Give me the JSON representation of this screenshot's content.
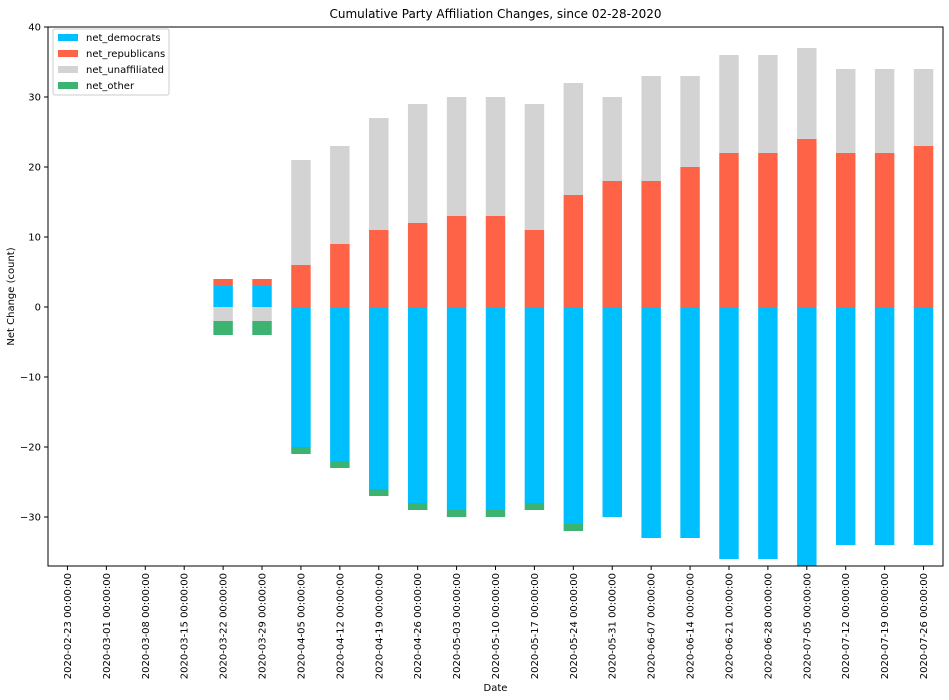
{
  "chart_data": {
    "type": "bar",
    "stacked": true,
    "title": "Cumulative Party Affiliation Changes, since 02-28-2020",
    "xlabel": "Date",
    "ylabel": "Net Change (count)",
    "ylim": [
      -37,
      40
    ],
    "yticks": [
      -30,
      -20,
      -10,
      0,
      10,
      20,
      30,
      40
    ],
    "grid": false,
    "legend_position": "top-left",
    "categories": [
      "2020-02-23 00:00:00",
      "2020-03-01 00:00:00",
      "2020-03-08 00:00:00",
      "2020-03-15 00:00:00",
      "2020-03-22 00:00:00",
      "2020-03-29 00:00:00",
      "2020-04-05 00:00:00",
      "2020-04-12 00:00:00",
      "2020-04-19 00:00:00",
      "2020-04-26 00:00:00",
      "2020-05-03 00:00:00",
      "2020-05-10 00:00:00",
      "2020-05-17 00:00:00",
      "2020-05-24 00:00:00",
      "2020-05-31 00:00:00",
      "2020-06-07 00:00:00",
      "2020-06-14 00:00:00",
      "2020-06-21 00:00:00",
      "2020-06-28 00:00:00",
      "2020-07-05 00:00:00",
      "2020-07-12 00:00:00",
      "2020-07-19 00:00:00",
      "2020-07-26 00:00:00"
    ],
    "series": [
      {
        "name": "net_democrats",
        "color": "#00bfff",
        "values": [
          null,
          null,
          null,
          null,
          3,
          3,
          -20,
          -22,
          -26,
          -28,
          -29,
          -29,
          -28,
          -31,
          -30,
          -33,
          -33,
          -36,
          -36,
          -37,
          -34,
          -34,
          -34
        ]
      },
      {
        "name": "net_republicans",
        "color": "#ff6347",
        "values": [
          null,
          null,
          null,
          null,
          1,
          1,
          6,
          9,
          11,
          12,
          13,
          13,
          11,
          16,
          18,
          18,
          20,
          22,
          22,
          24,
          22,
          22,
          23
        ]
      },
      {
        "name": "net_unaffiliated",
        "color": "#d3d3d3",
        "values": [
          null,
          null,
          null,
          null,
          -2,
          -2,
          15,
          14,
          16,
          17,
          17,
          17,
          18,
          16,
          12,
          15,
          13,
          14,
          14,
          13,
          12,
          12,
          11
        ]
      },
      {
        "name": "net_other",
        "color": "#3cb371",
        "values": [
          null,
          null,
          null,
          null,
          -2,
          -2,
          -1,
          -1,
          -1,
          -1,
          -1,
          -1,
          -1,
          -1,
          0,
          0,
          0,
          0,
          0,
          0,
          0,
          0,
          0
        ]
      }
    ]
  }
}
